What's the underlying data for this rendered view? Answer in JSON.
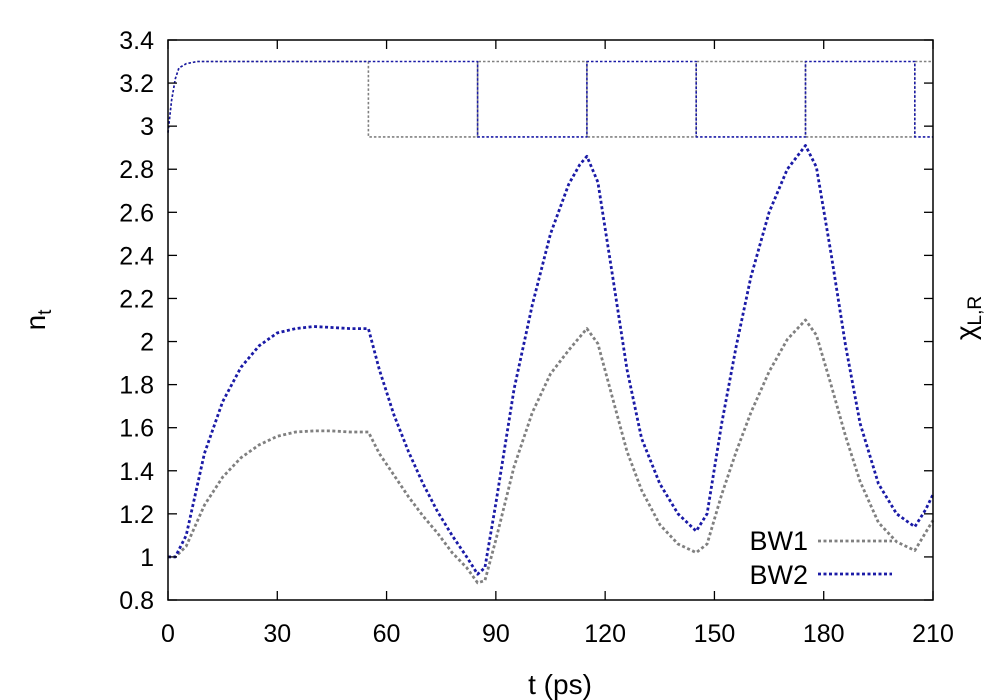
{
  "chart_data": {
    "type": "line",
    "xlabel": "t (ps)",
    "ylabel_main": "n",
    "ylabel_sub": "t",
    "y2label_main": "χ",
    "y2label_sub": "L,R",
    "xlim": [
      0,
      210
    ],
    "ylim": [
      0.8,
      3.4
    ],
    "x_ticks": [
      0,
      30,
      60,
      90,
      120,
      150,
      180,
      210
    ],
    "x_tick_labels": [
      "0",
      "30",
      "60",
      "90",
      "120",
      "150",
      "180",
      "210"
    ],
    "y_ticks": [
      0.8,
      1,
      1.2,
      1.4,
      1.6,
      1.8,
      2,
      2.2,
      2.4,
      2.6,
      2.8,
      3,
      3.2,
      3.4
    ],
    "y_tick_labels": [
      "0.8",
      "1",
      "1.2",
      "1.4",
      "1.6",
      "1.8",
      "2",
      "2.2",
      "2.4",
      "2.6",
      "2.8",
      "3",
      "3.2",
      "3.4"
    ],
    "grid": false,
    "legend_position": "bottom-right",
    "series": [
      {
        "name": "BW1",
        "color": "#808080",
        "role": "n_t",
        "points": [
          [
            0,
            1.0
          ],
          [
            2,
            1.0
          ],
          [
            5,
            1.05
          ],
          [
            10,
            1.24
          ],
          [
            15,
            1.37
          ],
          [
            20,
            1.46
          ],
          [
            25,
            1.52
          ],
          [
            30,
            1.56
          ],
          [
            35,
            1.58
          ],
          [
            40,
            1.585
          ],
          [
            45,
            1.585
          ],
          [
            50,
            1.58
          ],
          [
            55,
            1.58
          ],
          [
            58,
            1.48
          ],
          [
            62,
            1.38
          ],
          [
            66,
            1.28
          ],
          [
            70,
            1.19
          ],
          [
            74,
            1.11
          ],
          [
            78,
            1.02
          ],
          [
            82,
            0.95
          ],
          [
            85,
            0.88
          ],
          [
            87,
            0.89
          ],
          [
            90,
            1.08
          ],
          [
            95,
            1.42
          ],
          [
            100,
            1.67
          ],
          [
            105,
            1.85
          ],
          [
            110,
            1.96
          ],
          [
            113,
            2.02
          ],
          [
            115,
            2.06
          ],
          [
            118,
            1.99
          ],
          [
            122,
            1.74
          ],
          [
            126,
            1.49
          ],
          [
            130,
            1.31
          ],
          [
            135,
            1.15
          ],
          [
            140,
            1.06
          ],
          [
            145,
            1.02
          ],
          [
            148,
            1.06
          ],
          [
            152,
            1.29
          ],
          [
            156,
            1.49
          ],
          [
            160,
            1.67
          ],
          [
            165,
            1.86
          ],
          [
            170,
            2.01
          ],
          [
            175,
            2.1
          ],
          [
            178,
            2.03
          ],
          [
            182,
            1.8
          ],
          [
            186,
            1.56
          ],
          [
            190,
            1.35
          ],
          [
            195,
            1.16
          ],
          [
            200,
            1.07
          ],
          [
            205,
            1.03
          ],
          [
            210,
            1.17
          ]
        ]
      },
      {
        "name": "BW2",
        "color": "#1a1aa6",
        "role": "n_t",
        "points": [
          [
            0,
            1.0
          ],
          [
            2,
            1.0
          ],
          [
            5,
            1.1
          ],
          [
            10,
            1.48
          ],
          [
            15,
            1.72
          ],
          [
            20,
            1.88
          ],
          [
            25,
            1.98
          ],
          [
            30,
            2.04
          ],
          [
            35,
            2.06
          ],
          [
            40,
            2.07
          ],
          [
            45,
            2.065
          ],
          [
            50,
            2.06
          ],
          [
            55,
            2.06
          ],
          [
            58,
            1.87
          ],
          [
            62,
            1.66
          ],
          [
            66,
            1.49
          ],
          [
            70,
            1.34
          ],
          [
            74,
            1.21
          ],
          [
            78,
            1.1
          ],
          [
            82,
            1.0
          ],
          [
            85,
            0.92
          ],
          [
            87,
            0.95
          ],
          [
            90,
            1.25
          ],
          [
            95,
            1.78
          ],
          [
            100,
            2.17
          ],
          [
            105,
            2.5
          ],
          [
            110,
            2.73
          ],
          [
            113,
            2.82
          ],
          [
            115,
            2.86
          ],
          [
            118,
            2.74
          ],
          [
            122,
            2.31
          ],
          [
            126,
            1.87
          ],
          [
            130,
            1.55
          ],
          [
            135,
            1.34
          ],
          [
            140,
            1.2
          ],
          [
            145,
            1.12
          ],
          [
            148,
            1.2
          ],
          [
            152,
            1.62
          ],
          [
            156,
            1.98
          ],
          [
            160,
            2.3
          ],
          [
            165,
            2.6
          ],
          [
            170,
            2.8
          ],
          [
            175,
            2.91
          ],
          [
            178,
            2.81
          ],
          [
            182,
            2.41
          ],
          [
            186,
            1.98
          ],
          [
            190,
            1.62
          ],
          [
            195,
            1.34
          ],
          [
            200,
            1.2
          ],
          [
            205,
            1.14
          ],
          [
            208,
            1.22
          ],
          [
            210,
            1.29
          ]
        ]
      },
      {
        "name": "BW1 χ",
        "color": "#808080",
        "role": "chi",
        "points": [
          [
            0,
            2.97
          ],
          [
            1,
            3.12
          ],
          [
            2,
            3.22
          ],
          [
            3,
            3.27
          ],
          [
            5,
            3.29
          ],
          [
            8,
            3.3
          ],
          [
            55,
            3.3
          ],
          [
            55,
            2.95
          ],
          [
            85,
            2.95
          ],
          [
            85,
            3.3
          ],
          [
            115,
            3.3
          ],
          [
            115,
            2.95
          ],
          [
            145,
            2.95
          ],
          [
            145,
            3.3
          ],
          [
            175,
            3.3
          ],
          [
            175,
            2.95
          ],
          [
            205,
            2.95
          ],
          [
            205,
            3.3
          ],
          [
            210,
            3.3
          ]
        ]
      },
      {
        "name": "BW2 χ",
        "color": "#1a1aa6",
        "role": "chi",
        "points": [
          [
            0,
            2.97
          ],
          [
            1,
            3.12
          ],
          [
            2,
            3.22
          ],
          [
            3,
            3.27
          ],
          [
            5,
            3.29
          ],
          [
            8,
            3.3
          ],
          [
            85,
            3.3
          ],
          [
            85,
            2.95
          ],
          [
            115,
            2.95
          ],
          [
            115,
            3.3
          ],
          [
            145,
            3.3
          ],
          [
            145,
            2.95
          ],
          [
            175,
            2.95
          ],
          [
            175,
            3.3
          ],
          [
            205,
            3.3
          ],
          [
            205,
            2.95
          ],
          [
            210,
            2.95
          ]
        ]
      }
    ],
    "legend": [
      {
        "label": "BW1",
        "color": "#808080"
      },
      {
        "label": "BW2",
        "color": "#1a1aa6"
      }
    ]
  }
}
